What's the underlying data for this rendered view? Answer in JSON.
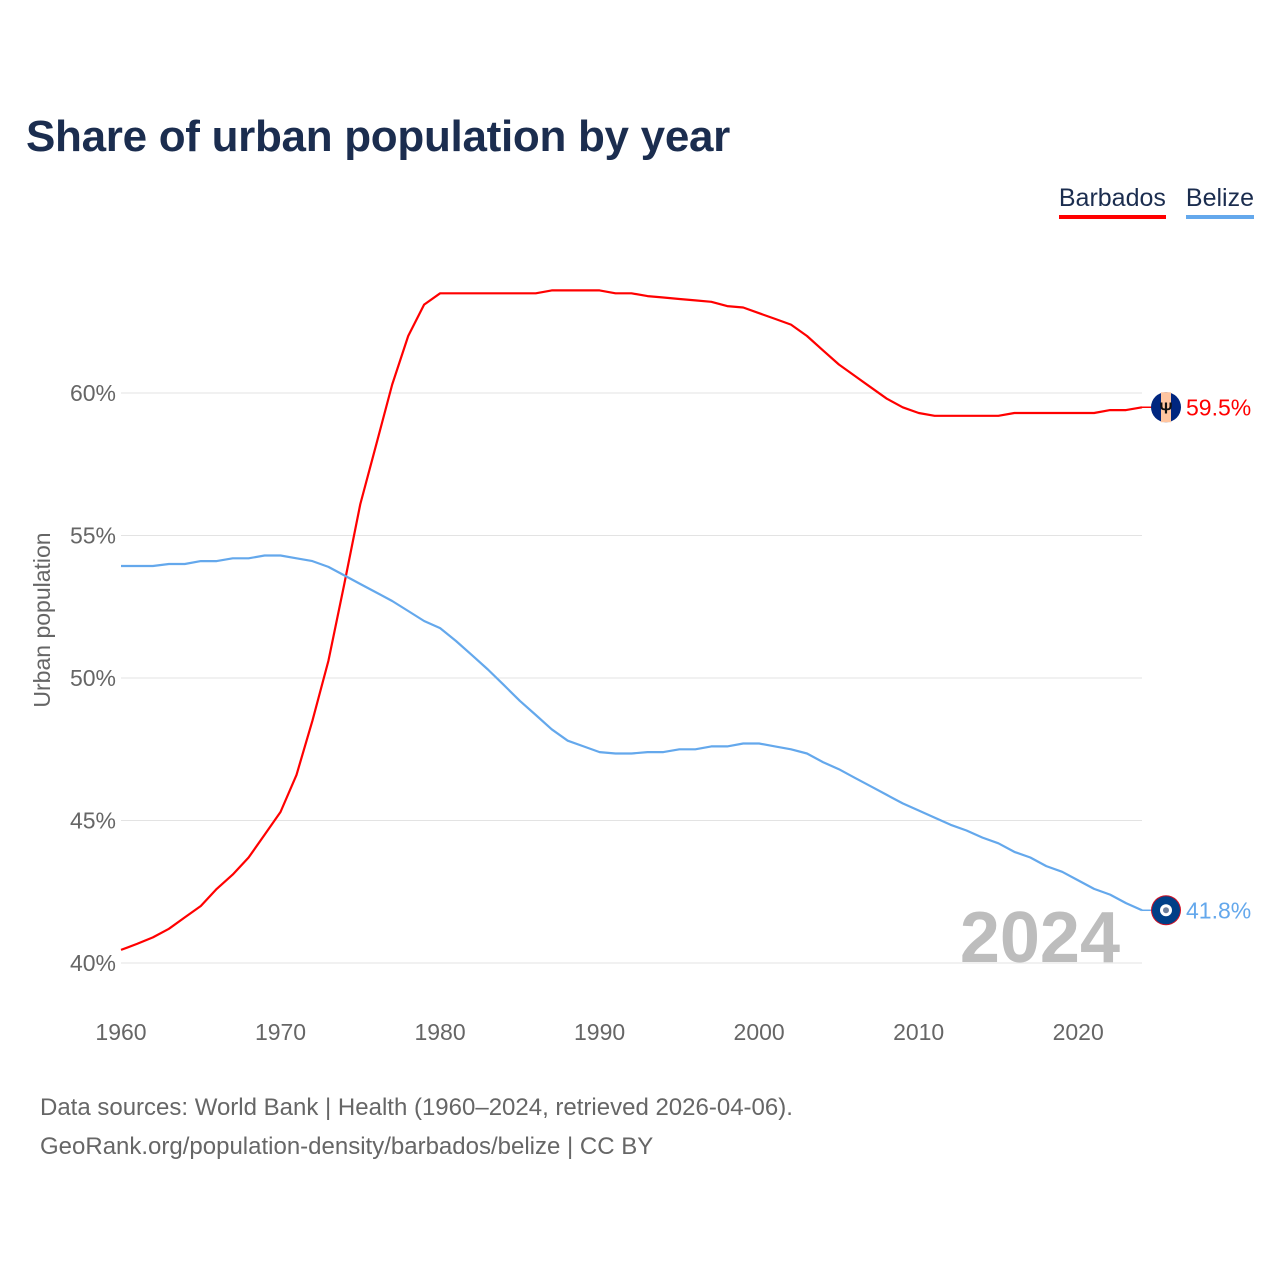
{
  "title": "Share of urban population by year",
  "source_line1": "Data sources: World Bank | Health (1960–2024, retrieved 2026-04-06).",
  "source_line2": "GeoRank.org/population-density/barbados/belize | CC BY",
  "chart_data": {
    "type": "line",
    "title": "Share of urban population by year",
    "xlabel": "",
    "ylabel": "Urban population",
    "xlim": [
      1960,
      2024
    ],
    "ylim": [
      40,
      65
    ],
    "x_ticks": [
      1960,
      1970,
      1980,
      1990,
      2000,
      2010,
      2020
    ],
    "y_ticks": [
      40,
      45,
      50,
      55,
      60
    ],
    "y_tick_labels": [
      "40%",
      "45%",
      "50%",
      "55%",
      "60%"
    ],
    "grid": true,
    "legend_position": "top-right",
    "current_year_label": "2024",
    "x": [
      1960,
      1961,
      1962,
      1963,
      1964,
      1965,
      1966,
      1967,
      1968,
      1969,
      1970,
      1971,
      1972,
      1973,
      1974,
      1975,
      1976,
      1977,
      1978,
      1979,
      1980,
      1981,
      1982,
      1983,
      1984,
      1985,
      1986,
      1987,
      1988,
      1989,
      1990,
      1991,
      1992,
      1993,
      1994,
      1995,
      1996,
      1997,
      1998,
      1999,
      2000,
      2001,
      2002,
      2003,
      2004,
      2005,
      2006,
      2007,
      2008,
      2009,
      2010,
      2011,
      2012,
      2013,
      2014,
      2015,
      2016,
      2017,
      2018,
      2019,
      2020,
      2021,
      2022,
      2023,
      2024
    ],
    "series": [
      {
        "name": "Barbados",
        "color": "#ff0000",
        "end_label": "59.5%",
        "flag": "barbados-flag",
        "values": [
          40.46,
          40.67,
          40.9,
          41.2,
          41.6,
          42.0,
          42.6,
          43.1,
          43.7,
          44.5,
          45.3,
          46.6,
          48.5,
          50.6,
          53.3,
          56.1,
          58.2,
          60.3,
          62.0,
          63.1,
          63.5,
          63.5,
          63.5,
          63.5,
          63.5,
          63.5,
          63.5,
          63.6,
          63.6,
          63.6,
          63.6,
          63.5,
          63.5,
          63.4,
          63.35,
          63.3,
          63.25,
          63.2,
          63.05,
          63.0,
          62.8,
          62.6,
          62.4,
          62.0,
          61.5,
          61.0,
          60.6,
          60.2,
          59.8,
          59.5,
          59.3,
          59.2,
          59.2,
          59.2,
          59.2,
          59.2,
          59.3,
          59.3,
          59.3,
          59.3,
          59.3,
          59.3,
          59.4,
          59.4,
          59.5
        ]
      },
      {
        "name": "Belize",
        "color": "#64a8ec",
        "end_label": "41.8%",
        "flag": "belize-flag",
        "values": [
          53.93,
          53.93,
          53.93,
          54.0,
          54.0,
          54.1,
          54.1,
          54.2,
          54.2,
          54.3,
          54.3,
          54.2,
          54.1,
          53.9,
          53.6,
          53.3,
          53.0,
          52.7,
          52.35,
          52.0,
          51.75,
          51.3,
          50.8,
          50.3,
          49.75,
          49.2,
          48.7,
          48.2,
          47.8,
          47.6,
          47.4,
          47.35,
          47.35,
          47.4,
          47.4,
          47.5,
          47.5,
          47.6,
          47.6,
          47.7,
          47.7,
          47.6,
          47.5,
          47.35,
          47.05,
          46.8,
          46.5,
          46.2,
          45.9,
          45.6,
          45.35,
          45.1,
          44.85,
          44.65,
          44.4,
          44.2,
          43.9,
          43.7,
          43.4,
          43.2,
          42.9,
          42.6,
          42.4,
          42.1,
          41.85
        ]
      }
    ]
  }
}
